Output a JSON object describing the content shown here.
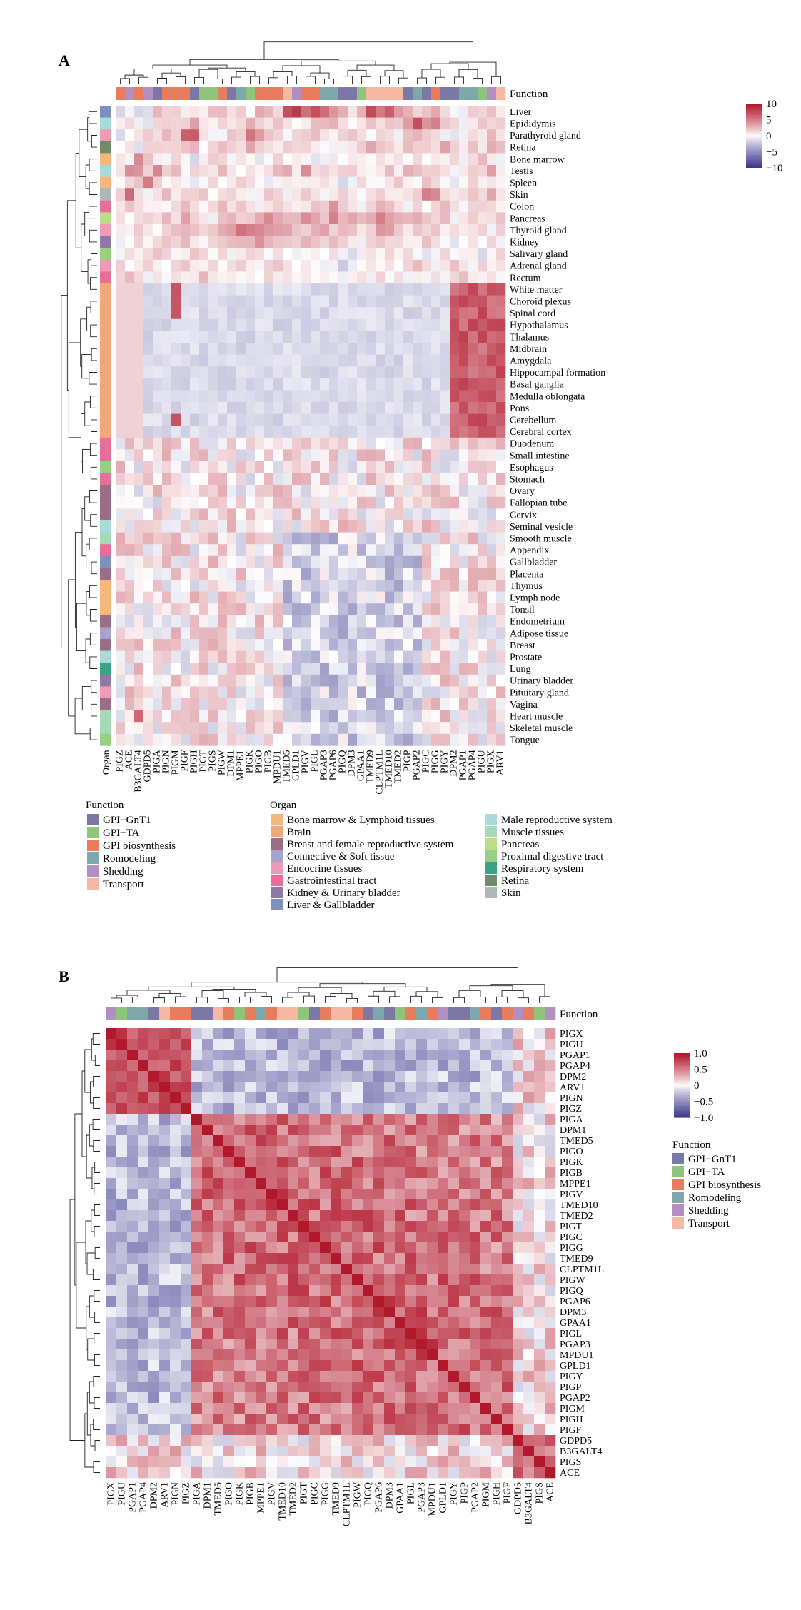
{
  "figure": {
    "panel_labels": [
      "A",
      "B"
    ]
  },
  "function_legend": {
    "title": "Function",
    "items": [
      {
        "label": "GPI−GnT1",
        "color": "#7b78a8"
      },
      {
        "label": "GPI−TA",
        "color": "#8fc57b"
      },
      {
        "label": "GPI biosynthesis",
        "color": "#ea7c5e"
      },
      {
        "label": "Romodeling",
        "color": "#7fa8ad"
      },
      {
        "label": "Shedding",
        "color": "#b28fc0"
      },
      {
        "label": "Transport",
        "color": "#f7b8a3"
      }
    ]
  },
  "organ_legend": {
    "title": "Organ",
    "items": [
      {
        "label": "Bone marrow & Lymphoid tissues",
        "color": "#f5b87a"
      },
      {
        "label": "Brain",
        "color": "#efa877"
      },
      {
        "label": "Breast and female reproductive system",
        "color": "#9a6e86"
      },
      {
        "label": "Connective & Soft tissue",
        "color": "#a7a3cc"
      },
      {
        "label": "Endocrine tissues",
        "color": "#ee9bb5"
      },
      {
        "label": "Gastrointestinal tract",
        "color": "#e66f9a"
      },
      {
        "label": "Kidney & Urinary bladder",
        "color": "#8e79a6"
      },
      {
        "label": "Liver & Gallbladder",
        "color": "#7c8fbd"
      },
      {
        "label": "Male reproductive system",
        "color": "#a9dbdb"
      },
      {
        "label": "Muscle tissues",
        "color": "#a7d8b8"
      },
      {
        "label": "Pancreas",
        "color": "#bcdc8a"
      },
      {
        "label": "Proximal digestive tract",
        "color": "#98cf82"
      },
      {
        "label": "Respiratory system",
        "color": "#3aa383"
      },
      {
        "label": "Retina",
        "color": "#708a6a"
      },
      {
        "label": "Skin",
        "color": "#aeb6b8"
      }
    ]
  },
  "chart_data": [
    {
      "type": "heatmap",
      "panel": "A",
      "annotation_row_label": "Function",
      "annotation_col_label": "Organ",
      "color_scale": {
        "min": -10,
        "max": 10,
        "ticks": [
          "10",
          "5",
          "0",
          "−5",
          "−10"
        ],
        "low": "#3f3a8f",
        "mid": "#ffffff",
        "high": "#b2182b"
      },
      "columns": [
        "PIGZ",
        "ACE",
        "B3GALT4",
        "GDPD5",
        "PIGA",
        "PIGN",
        "PIGM",
        "PIGF",
        "PIGH",
        "PIGT",
        "PIGS",
        "PIGW",
        "DPM1",
        "MPPE1",
        "PIGK",
        "PIGO",
        "PIGB",
        "MPDU1",
        "TMED5",
        "GPLD1",
        "PIGV",
        "PIGL",
        "PGAP3",
        "PGAP6",
        "PIGQ",
        "DPM3",
        "GPAA1",
        "TMED9",
        "CLPTM1L",
        "TMED10",
        "TMED2",
        "PIGP",
        "PGAP2",
        "PIGC",
        "PIGG",
        "PIGY",
        "DPM2",
        "PGAP1",
        "PGAP4",
        "PIGU",
        "PIGX",
        "ARV1"
      ],
      "column_function": [
        "GPI biosynthesis",
        "Shedding",
        "GPI biosynthesis",
        "Shedding",
        "GPI−GnT1",
        "GPI biosynthesis",
        "GPI biosynthesis",
        "GPI biosynthesis",
        "GPI−GnT1",
        "GPI−TA",
        "GPI−TA",
        "GPI biosynthesis",
        "GPI−GnT1",
        "Romodeling",
        "GPI−TA",
        "GPI biosynthesis",
        "GPI biosynthesis",
        "GPI biosynthesis",
        "Transport",
        "Shedding",
        "GPI biosynthesis",
        "GPI biosynthesis",
        "Romodeling",
        "Romodeling",
        "GPI−GnT1",
        "GPI−GnT1",
        "GPI−TA",
        "Transport",
        "Transport",
        "Transport",
        "Transport",
        "GPI−GnT1",
        "Romodeling",
        "GPI−GnT1",
        "GPI biosynthesis",
        "GPI−GnT1",
        "GPI−GnT1",
        "Romodeling",
        "Romodeling",
        "GPI−TA",
        "Shedding",
        "Transport"
      ],
      "rows": [
        "Liver",
        "Epididymis",
        "Parathyroid gland",
        "Retina",
        "Bone marrow",
        "Testis",
        "Spleen",
        "Skin",
        "Colon",
        "Pancreas",
        "Thyroid gland",
        "Kidney",
        "Salivary gland",
        "Adrenal gland",
        "Rectum",
        "White matter",
        "Choroid plexus",
        "Spinal cord",
        "Hypothalamus",
        "Thalamus",
        "Midbrain",
        "Amygdala",
        "Hippocampal formation",
        "Basal ganglia",
        "Medulla oblongata",
        "Pons",
        "Cerebellum",
        "Cerebral cortex",
        "Duodenum",
        "Small intestine",
        "Esophagus",
        "Stomach",
        "Ovary",
        "Fallopian tube",
        "Cervix",
        "Seminal vesicle",
        "Smooth muscle",
        "Appendix",
        "Gallbladder",
        "Placenta",
        "Thymus",
        "Lymph node",
        "Tonsil",
        "Endometrium",
        "Adipose tissue",
        "Breast",
        "Prostate",
        "Lung",
        "Urinary bladder",
        "Pituitary gland",
        "Vagina",
        "Heart muscle",
        "Skeletal muscle",
        "Tongue"
      ],
      "row_organ": [
        "Liver & Gallbladder",
        "Male reproductive system",
        "Endocrine tissues",
        "Retina",
        "Bone marrow & Lymphoid tissues",
        "Male reproductive system",
        "Bone marrow & Lymphoid tissues",
        "Skin",
        "Gastrointestinal tract",
        "Pancreas",
        "Endocrine tissues",
        "Kidney & Urinary bladder",
        "Proximal digestive tract",
        "Endocrine tissues",
        "Gastrointestinal tract",
        "Brain",
        "Brain",
        "Brain",
        "Brain",
        "Brain",
        "Brain",
        "Brain",
        "Brain",
        "Brain",
        "Brain",
        "Brain",
        "Brain",
        "Brain",
        "Gastrointestinal tract",
        "Gastrointestinal tract",
        "Proximal digestive tract",
        "Gastrointestinal tract",
        "Breast and female reproductive system",
        "Breast and female reproductive system",
        "Breast and female reproductive system",
        "Male reproductive system",
        "Muscle tissues",
        "Gastrointestinal tract",
        "Liver & Gallbladder",
        "Breast and female reproductive system",
        "Bone marrow & Lymphoid tissues",
        "Bone marrow & Lymphoid tissues",
        "Bone marrow & Lymphoid tissues",
        "Breast and female reproductive system",
        "Connective & Soft tissue",
        "Breast and female reproductive system",
        "Male reproductive system",
        "Respiratory system",
        "Kidney & Urinary bladder",
        "Endocrine tissues",
        "Breast and female reproductive system",
        "Muscle tissues",
        "Muscle tissues",
        "Proximal digestive tract"
      ],
      "row_group_pattern": {
        "Liver": [
          -1,
          0,
          -1,
          -1,
          3,
          2,
          1,
          1,
          1,
          0,
          2,
          2,
          1,
          2,
          0,
          3,
          2,
          1,
          7,
          8,
          6,
          7,
          6,
          4,
          3,
          1,
          3,
          7,
          5,
          6,
          4,
          3,
          1,
          2,
          3,
          1,
          0,
          -1,
          2,
          1,
          2,
          1
        ],
        "Epididymis": [
          0,
          1,
          0,
          -1,
          1,
          2,
          1,
          2,
          3,
          1,
          0,
          2,
          1,
          1,
          3,
          2,
          1,
          2,
          1,
          0,
          1,
          2,
          2,
          3,
          1,
          0,
          1,
          2,
          1,
          2,
          2,
          3,
          7,
          4,
          5,
          2,
          1,
          0,
          1,
          2,
          1,
          2
        ],
        "Parathyroid gland": [
          -1,
          0,
          1,
          2,
          1,
          3,
          2,
          6,
          7,
          1,
          -1,
          0,
          2,
          1,
          5,
          4,
          2,
          1,
          0,
          1,
          2,
          2,
          1,
          0,
          1,
          2,
          1,
          0,
          1,
          1,
          0,
          2,
          3,
          2,
          1,
          0,
          -1,
          0,
          1,
          1,
          2,
          1
        ],
        "Retina": [
          0,
          1,
          -1,
          1,
          2,
          1,
          2,
          2,
          3,
          0,
          1,
          2,
          1,
          1,
          3,
          2,
          1,
          0,
          2,
          1,
          2,
          1,
          0,
          -1,
          1,
          1,
          2,
          3,
          2,
          1,
          1,
          2,
          1,
          2,
          1,
          3,
          1,
          0,
          2,
          1,
          3,
          2
        ],
        "Bone marrow": [
          1,
          0,
          4,
          2,
          1,
          0,
          1,
          0,
          -1,
          1,
          2,
          1,
          0,
          1,
          0,
          -1,
          0,
          1,
          0,
          1,
          0,
          -1,
          0,
          1,
          0,
          1,
          0,
          0,
          1,
          0,
          1,
          0,
          1,
          0,
          1,
          0,
          1,
          0,
          1,
          2,
          1,
          0
        ],
        "Testis": [
          1,
          4,
          4,
          1,
          5,
          2,
          3,
          0,
          2,
          1,
          1,
          2,
          1,
          0,
          1,
          0,
          1,
          2,
          3,
          1,
          5,
          1,
          2,
          1,
          2,
          2,
          1,
          0,
          1,
          2,
          1,
          3,
          2,
          1,
          2,
          1,
          0,
          1,
          2,
          1,
          3,
          0
        ],
        "Spleen": [
          0,
          1,
          2,
          5,
          1,
          0,
          1,
          0,
          -1,
          0,
          1,
          0,
          1,
          2,
          1,
          0,
          -1,
          0,
          1,
          0,
          1,
          0,
          1,
          0,
          -1,
          0,
          1,
          0,
          0,
          1,
          2,
          1,
          0,
          2,
          1,
          0,
          -1,
          0,
          1,
          0,
          1,
          0
        ],
        "Skin": [
          2,
          6,
          1,
          0,
          1,
          2,
          1,
          2,
          1,
          2,
          0,
          1,
          2,
          1,
          0,
          1,
          2,
          1,
          0,
          1,
          2,
          1,
          0,
          1,
          2,
          1,
          0,
          1,
          2,
          1,
          0,
          1,
          2,
          5,
          4,
          1,
          0,
          1,
          2,
          1,
          3,
          1
        ],
        "Colon": [
          1,
          2,
          1,
          0,
          1,
          0,
          1,
          2,
          1,
          0,
          1,
          2,
          1,
          2,
          1,
          0,
          1,
          2,
          1,
          0,
          1,
          2,
          2,
          4,
          2,
          1,
          0,
          1,
          3,
          2,
          1,
          0,
          1,
          0,
          1,
          2,
          1,
          0,
          1,
          2,
          1,
          0
        ],
        "Pancreas": [
          1,
          0,
          1,
          2,
          1,
          2,
          1,
          3,
          2,
          1,
          0,
          2,
          3,
          2,
          2,
          3,
          4,
          3,
          2,
          3,
          4,
          3,
          2,
          5,
          3,
          3,
          2,
          3,
          5,
          4,
          3,
          2,
          3,
          2,
          1,
          2,
          0,
          1,
          2,
          1,
          1,
          2
        ],
        "Thyroid gland": [
          0,
          1,
          2,
          1,
          0,
          1,
          2,
          3,
          2,
          1,
          2,
          3,
          4,
          6,
          5,
          5,
          4,
          3,
          3,
          2,
          2,
          3,
          4,
          2,
          3,
          2,
          1,
          2,
          4,
          3,
          2,
          1,
          2,
          1,
          2,
          1,
          1,
          0,
          1,
          1,
          0,
          1
        ],
        "Kidney": [
          -1,
          0,
          1,
          0,
          1,
          2,
          1,
          2,
          1,
          0,
          1,
          2,
          2,
          3,
          2,
          4,
          3,
          2,
          2,
          2,
          3,
          2,
          1,
          2,
          1,
          1,
          0,
          2,
          2,
          1,
          1,
          0,
          1,
          2,
          1,
          0,
          -1,
          0,
          1,
          0,
          1,
          0
        ],
        "Salivary gland": [
          0,
          1,
          0,
          1,
          2,
          1,
          0,
          1,
          2,
          1,
          0,
          1,
          0,
          1,
          2,
          1,
          0,
          1,
          0,
          -1,
          0,
          1,
          0,
          1,
          0,
          -1,
          0,
          1,
          0,
          1,
          0,
          1,
          0,
          -1,
          0,
          1,
          0,
          1,
          0,
          -1,
          0,
          1
        ],
        "Adrenal gland": [
          1,
          0,
          1,
          2,
          1,
          0,
          1,
          2,
          1,
          0,
          1,
          0,
          1,
          2,
          1,
          0,
          1,
          2,
          1,
          0,
          1,
          0,
          0,
          -1,
          -2,
          -1,
          0,
          1,
          0,
          1,
          0,
          1,
          2,
          1,
          0,
          1,
          2,
          1,
          0,
          1,
          0,
          1
        ],
        "Rectum": [
          1,
          2,
          1,
          0,
          1,
          0,
          1,
          0,
          1,
          2,
          1,
          0,
          1,
          0,
          1,
          0,
          1,
          0,
          1,
          0,
          1,
          0,
          1,
          0,
          -1,
          0,
          1,
          0,
          1,
          0,
          1,
          0,
          1,
          0,
          1,
          0,
          1,
          2,
          1,
          0,
          1,
          0
        ]
      },
      "note": "cluster/block patterns approximated from the image"
    },
    {
      "type": "heatmap",
      "panel": "B",
      "annotation_col_label": "Function",
      "color_scale": {
        "min": -1.0,
        "max": 1.0,
        "ticks": [
          "1.0",
          "0.5",
          "0",
          "−0.5",
          "−1.0"
        ],
        "low": "#3f3a8f",
        "mid": "#ffffff",
        "high": "#b2182b"
      },
      "genes": [
        "PIGX",
        "PIGU",
        "PGAP1",
        "PGAP4",
        "DPM2",
        "ARV1",
        "PIGN",
        "PIGZ",
        "PIGA",
        "DPM1",
        "TMED5",
        "PIGO",
        "PIGK",
        "PIGB",
        "MPPE1",
        "PIGV",
        "TMED10",
        "TMED2",
        "PIGT",
        "PIGC",
        "PIGG",
        "TMED9",
        "CLPTM1L",
        "PIGW",
        "PIGQ",
        "PGAP6",
        "DPM3",
        "GPAA1",
        "PIGL",
        "PGAP3",
        "MPDU1",
        "GPLD1",
        "PIGY",
        "PIGP",
        "PGAP2",
        "PIGM",
        "PIGH",
        "PIGF",
        "GDPD5",
        "B3GALT4",
        "PIGS",
        "ACE"
      ],
      "gene_function": [
        "Shedding",
        "GPI−TA",
        "Romodeling",
        "Romodeling",
        "GPI−GnT1",
        "Transport",
        "GPI biosynthesis",
        "GPI biosynthesis",
        "GPI−GnT1",
        "GPI−GnT1",
        "Transport",
        "GPI biosynthesis",
        "GPI−TA",
        "GPI biosynthesis",
        "Romodeling",
        "GPI biosynthesis",
        "Transport",
        "Transport",
        "GPI−TA",
        "GPI−GnT1",
        "GPI biosynthesis",
        "Transport",
        "Transport",
        "GPI biosynthesis",
        "GPI−GnT1",
        "Romodeling",
        "GPI−GnT1",
        "GPI−TA",
        "GPI biosynthesis",
        "Romodeling",
        "GPI biosynthesis",
        "Shedding",
        "GPI−GnT1",
        "GPI−GnT1",
        "Romodeling",
        "GPI biosynthesis",
        "GPI−GnT1",
        "GPI biosynthesis",
        "Shedding",
        "GPI biosynthesis",
        "GPI−TA",
        "Shedding"
      ],
      "blocks": [
        {
          "genes_from": "PIGX",
          "genes_to": "PIGZ",
          "within": 0.7
        },
        {
          "genes_from": "PIGA",
          "genes_to": "PIGF",
          "within": 0.75
        },
        {
          "genes_from": "GDPD5",
          "genes_to": "ACE",
          "within": 0.5
        },
        {
          "between_first_two": -0.4
        }
      ],
      "note": "correlation structure approximated from the image"
    }
  ]
}
